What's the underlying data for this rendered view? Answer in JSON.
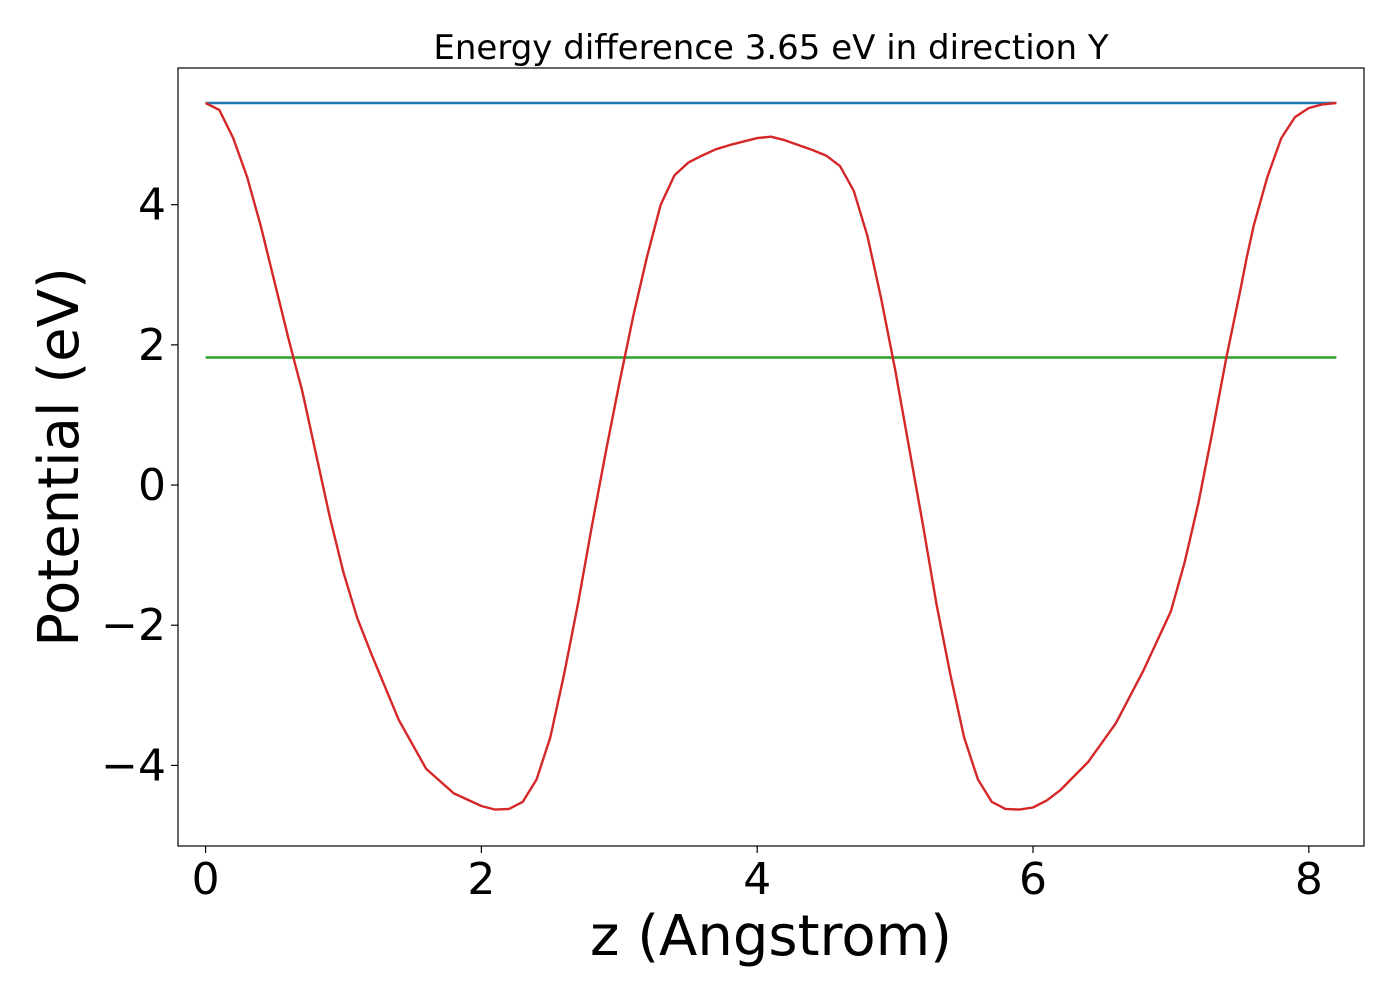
{
  "chart_data": {
    "type": "line",
    "title": "Energy difference 3.65 eV in direction Y",
    "xlabel": "z (Angstrom)",
    "ylabel": "Potential (eV)",
    "xlim": [
      -0.2,
      8.4
    ],
    "ylim": [
      -5.15,
      5.95
    ],
    "xticks": [
      0,
      2,
      4,
      6,
      8
    ],
    "xtick_labels": [
      "0",
      "2",
      "4",
      "6",
      "8"
    ],
    "yticks": [
      -4,
      -2,
      0,
      2,
      4
    ],
    "ytick_labels": [
      "−4",
      "−2",
      "0",
      "2",
      "4"
    ],
    "grid": false,
    "series": [
      {
        "color": "#1f77b4",
        "x": [
          0,
          8.2
        ],
        "y": [
          5.45,
          5.45
        ]
      },
      {
        "color": "#2ca02c",
        "x": [
          0,
          8.2
        ],
        "y": [
          1.82,
          1.82
        ]
      },
      {
        "color": "#d62728",
        "x": [
          0.0,
          0.1,
          0.2,
          0.3,
          0.4,
          0.5,
          0.6,
          0.65,
          0.7,
          0.8,
          0.9,
          1.0,
          1.1,
          1.2,
          1.4,
          1.6,
          1.8,
          2.0,
          2.1,
          2.2,
          2.3,
          2.4,
          2.5,
          2.6,
          2.7,
          2.8,
          2.9,
          3.0,
          3.1,
          3.2,
          3.3,
          3.4,
          3.5,
          3.6,
          3.7,
          3.8,
          3.9,
          4.0,
          4.1,
          4.2,
          4.3,
          4.4,
          4.5,
          4.6,
          4.7,
          4.8,
          4.9,
          5.0,
          5.1,
          5.2,
          5.3,
          5.4,
          5.5,
          5.6,
          5.7,
          5.8,
          5.9,
          6.0,
          6.1,
          6.2,
          6.3,
          6.4,
          6.6,
          6.8,
          7.0,
          7.1,
          7.2,
          7.3,
          7.4,
          7.5,
          7.55,
          7.6,
          7.7,
          7.8,
          7.9,
          8.0,
          8.1,
          8.2
        ],
        "y": [
          5.45,
          5.35,
          4.95,
          4.4,
          3.7,
          2.9,
          2.1,
          1.72,
          1.35,
          0.45,
          -0.45,
          -1.25,
          -1.9,
          -2.4,
          -3.35,
          -4.05,
          -4.4,
          -4.58,
          -4.63,
          -4.62,
          -4.52,
          -4.2,
          -3.6,
          -2.7,
          -1.7,
          -0.6,
          0.45,
          1.45,
          2.4,
          3.25,
          4.0,
          4.42,
          4.6,
          4.7,
          4.79,
          4.85,
          4.9,
          4.95,
          4.97,
          4.92,
          4.85,
          4.78,
          4.7,
          4.55,
          4.2,
          3.55,
          2.65,
          1.65,
          0.55,
          -0.55,
          -1.7,
          -2.7,
          -3.6,
          -4.2,
          -4.52,
          -4.62,
          -4.63,
          -4.6,
          -4.5,
          -4.35,
          -4.15,
          -3.95,
          -3.4,
          -2.65,
          -1.8,
          -1.1,
          -0.25,
          0.75,
          1.8,
          2.75,
          3.25,
          3.7,
          4.4,
          4.95,
          5.25,
          5.38,
          5.43,
          5.45
        ]
      }
    ]
  }
}
